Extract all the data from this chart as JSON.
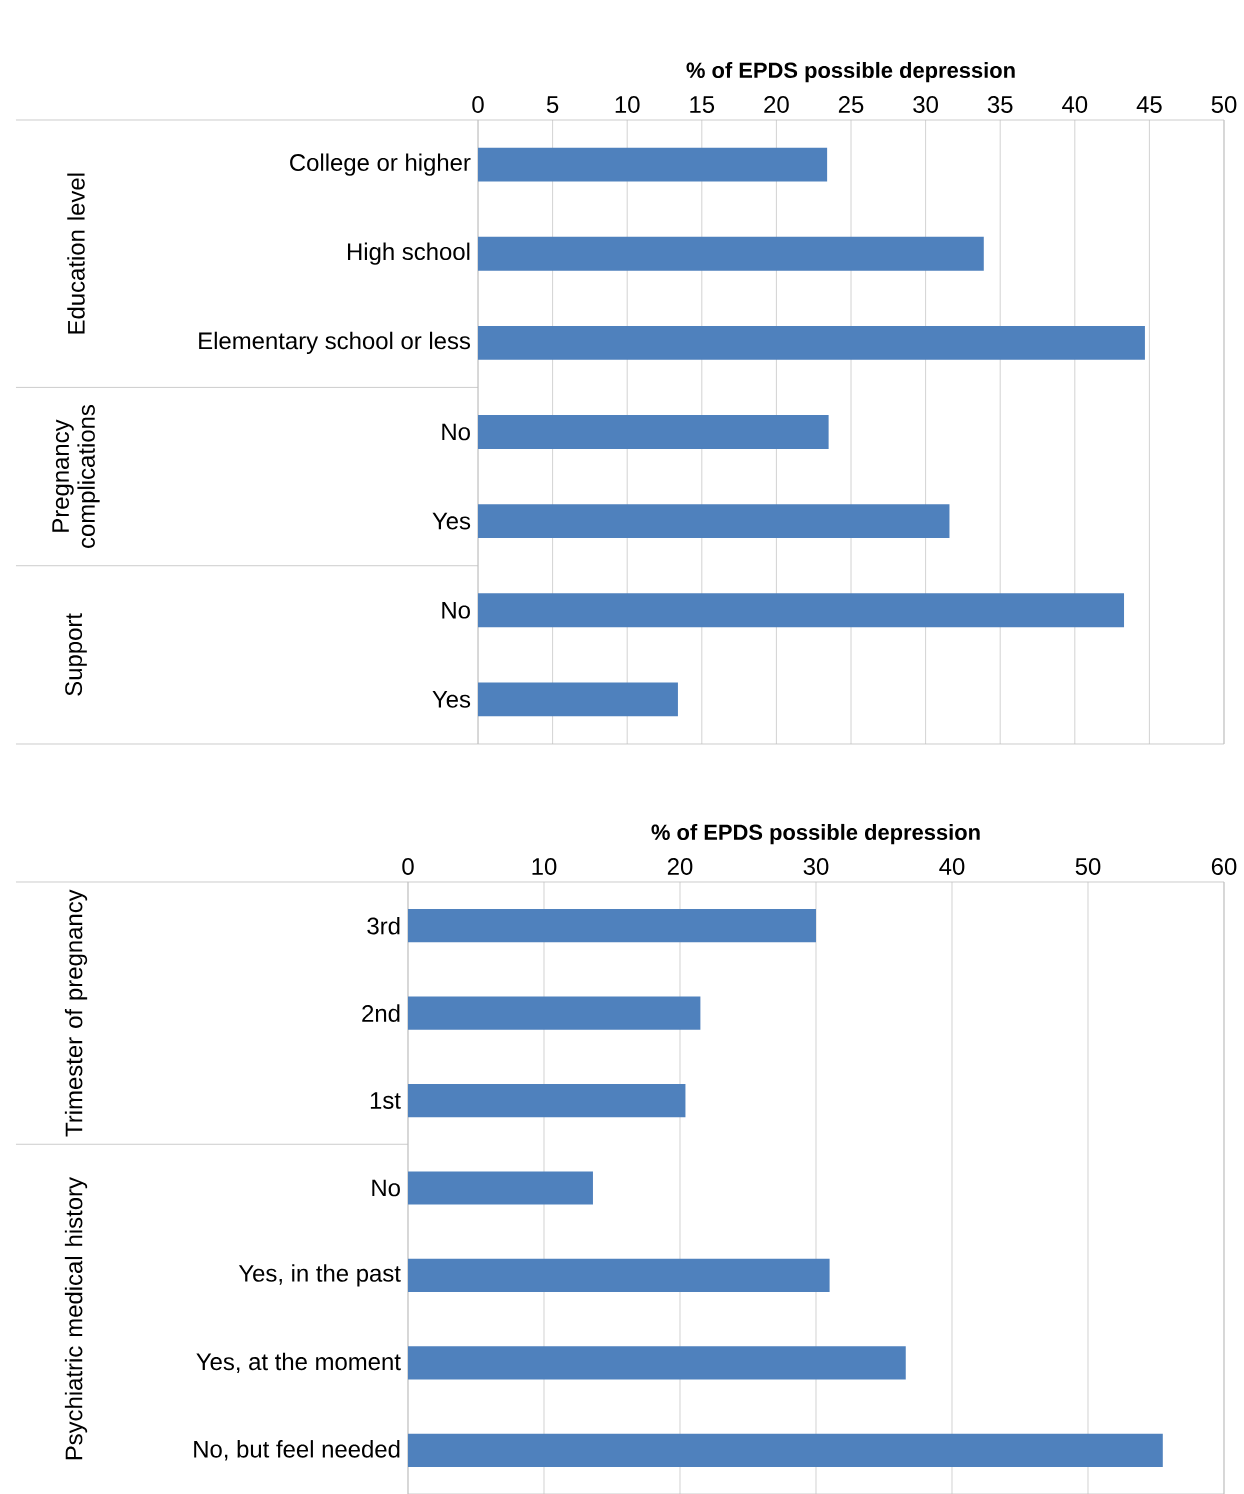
{
  "chart_data": [
    {
      "type": "bar",
      "orientation": "horizontal",
      "xlabel": "% of EPDS possible depression",
      "categories": [
        "College or higher",
        "High school",
        "Elementary school or less",
        "No",
        "Yes",
        "No",
        "Yes"
      ],
      "values": [
        23.4,
        33.9,
        44.7,
        23.5,
        31.6,
        43.3,
        13.4
      ],
      "color": "#4f81bd",
      "xlim": [
        0,
        50
      ],
      "xticks": [
        0,
        5,
        10,
        15,
        20,
        25,
        30,
        35,
        40,
        45,
        50
      ],
      "grid": "x",
      "annotations": [
        "Education level",
        "Pregnancy complications",
        "Support"
      ]
    },
    {
      "type": "bar",
      "orientation": "horizontal",
      "xlabel": "% of EPDS possible depression",
      "categories": [
        "3rd",
        "2nd",
        "1st",
        "No",
        "Yes, in the past",
        "Yes, at the moment",
        "No, but feel needed"
      ],
      "values": [
        30.0,
        21.5,
        20.4,
        13.6,
        31.0,
        36.6,
        55.5
      ],
      "color": "#4f81bd",
      "xlim": [
        0,
        60
      ],
      "xticks": [
        0,
        10,
        20,
        30,
        40,
        50,
        60
      ],
      "grid": "x",
      "annotations": [
        "Trimester of pregnancy",
        "Psychiatric medical history"
      ]
    }
  ]
}
